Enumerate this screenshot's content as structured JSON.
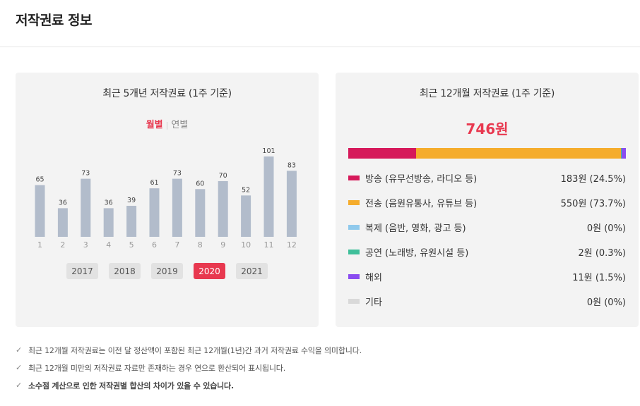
{
  "page": {
    "title": "저작권료 정보"
  },
  "left_card": {
    "title": "최근 5개년 저작권료 (1주 기준)",
    "toggle": {
      "monthly": "월별",
      "yearly": "연별"
    },
    "years": [
      {
        "label": "2017",
        "active": false
      },
      {
        "label": "2018",
        "active": false
      },
      {
        "label": "2019",
        "active": false
      },
      {
        "label": "2020",
        "active": true
      },
      {
        "label": "2021",
        "active": false
      }
    ]
  },
  "chart_data": {
    "type": "bar",
    "categories": [
      "1",
      "2",
      "3",
      "4",
      "5",
      "6",
      "7",
      "8",
      "9",
      "10",
      "11",
      "12"
    ],
    "values": [
      65,
      36,
      73,
      36,
      39,
      61,
      73,
      60,
      70,
      52,
      101,
      83
    ],
    "bar_color": "#b2bccb",
    "ylim": [
      0,
      101
    ]
  },
  "right_card": {
    "title": "최근 12개월 저작권료 (1주 기준)",
    "total": "746원",
    "segments": [
      {
        "label": "방송 (유무선방송, 라디오 등)",
        "value": "183원 (24.5%)",
        "pct": 24.5,
        "color": "#d6195a"
      },
      {
        "label": "전송 (음원유통사, 유튜브 등)",
        "value": "550원 (73.7%)",
        "pct": 73.7,
        "color": "#f5ac2c"
      },
      {
        "label": "복제 (음반, 영화, 광고 등)",
        "value": "0원 (0%)",
        "pct": 0,
        "color": "#8fc9ec"
      },
      {
        "label": "공연 (노래방, 유원시설 등)",
        "value": "2원 (0.3%)",
        "pct": 0.3,
        "color": "#3fbf9a"
      },
      {
        "label": "해외",
        "value": "11원 (1.5%)",
        "pct": 1.5,
        "color": "#8a4cf0"
      },
      {
        "label": "기타",
        "value": "0원 (0%)",
        "pct": 0,
        "color": "#d9d9d9"
      }
    ]
  },
  "notes": [
    {
      "text": "최근 12개월 저작권료는 이전 달 정산액이 포함된 최근 12개월(1년)간 과거 저작권료 수익을 의미합니다.",
      "bold": false
    },
    {
      "text": "최근 12개월 미만의 저작권료 자료만 존재하는 경우 연으로 환산되어 표시됩니다.",
      "bold": false
    },
    {
      "text": "소수점 계산으로 인한 저작권별 합산의 차이가 있을 수 있습니다.",
      "bold": true
    }
  ],
  "icons": {
    "check": "check-icon"
  }
}
